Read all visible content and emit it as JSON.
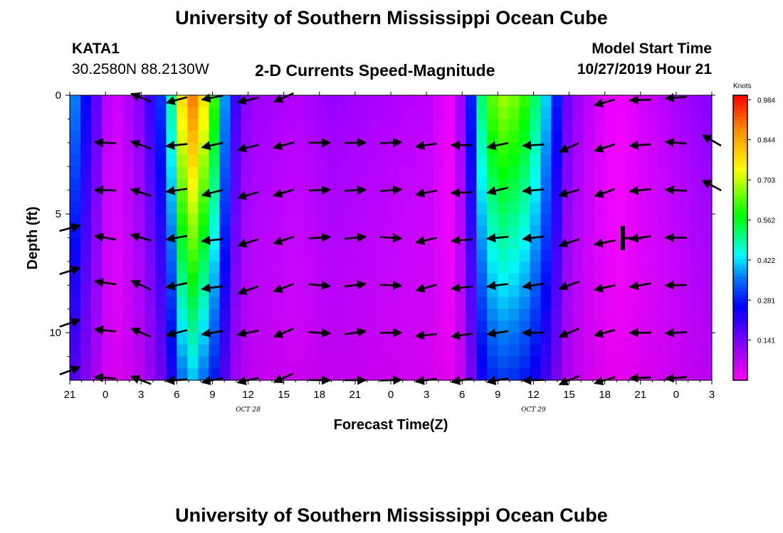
{
  "header": {
    "title_top": "University of Southern Mississippi Ocean Cube",
    "station": "KATA1",
    "coords": "30.2580N 88.2130W",
    "subtitle": "2-D Currents Speed-Magnitude",
    "model_start_label": "Model Start Time",
    "model_start_value": "10/27/2019 Hour 21",
    "title_bottom": "University of Southern Mississippi Ocean Cube"
  },
  "chart_data": {
    "type": "heatmap",
    "title": "2-D Currents Speed-Magnitude",
    "xlabel": "Forecast Time(Z)",
    "ylabel": "Depth (ft)",
    "xlim": [
      0,
      54
    ],
    "ylim": [
      12,
      0
    ],
    "x_tick_labels": [
      "21",
      "0",
      "3",
      "6",
      "9",
      "12",
      "15",
      "18",
      "21",
      "0",
      "3",
      "6",
      "9",
      "12",
      "15",
      "18",
      "21",
      "0",
      "3"
    ],
    "x_sub_labels": [
      {
        "text": "OCT 28",
        "x": 15
      },
      {
        "text": "OCT 29",
        "x": 39
      }
    ],
    "y_ticks": [
      0,
      5,
      10
    ],
    "y_tick_labels": [
      "0",
      "5",
      "10"
    ],
    "colorbar": {
      "unit": "Knots",
      "min": 0,
      "max": 1.0,
      "tick_values": [
        0.141,
        0.281,
        0.422,
        0.562,
        0.703,
        0.844,
        0.984
      ],
      "tick_labels": [
        "0.141",
        "0.281",
        "0.422",
        "0.562",
        "0.703",
        "0.844",
        "0.984"
      ]
    },
    "speed_profile_knots": [
      {
        "x": 0.0,
        "v": 0.38
      },
      {
        "x": 1.5,
        "v": 0.22
      },
      {
        "x": 2.8,
        "v": 0.1
      },
      {
        "x": 3.5,
        "v": 0.03
      },
      {
        "x": 5.0,
        "v": 0.08
      },
      {
        "x": 6.0,
        "v": 0.12
      },
      {
        "x": 7.5,
        "v": 0.25
      },
      {
        "x": 8.4,
        "v": 0.4
      },
      {
        "x": 9.0,
        "v": 0.6
      },
      {
        "x": 10.0,
        "v": 0.85
      },
      {
        "x": 11.0,
        "v": 0.75
      },
      {
        "x": 12.5,
        "v": 0.5
      },
      {
        "x": 13.5,
        "v": 0.22
      },
      {
        "x": 15.0,
        "v": 0.1
      },
      {
        "x": 19.0,
        "v": 0.07
      },
      {
        "x": 22.0,
        "v": 0.1
      },
      {
        "x": 30.5,
        "v": 0.06
      },
      {
        "x": 31.8,
        "v": 0.01
      },
      {
        "x": 32.8,
        "v": 0.08
      },
      {
        "x": 33.5,
        "v": 0.2
      },
      {
        "x": 35.0,
        "v": 0.56
      },
      {
        "x": 36.5,
        "v": 0.62
      },
      {
        "x": 38.0,
        "v": 0.58
      },
      {
        "x": 39.5,
        "v": 0.45
      },
      {
        "x": 40.5,
        "v": 0.32
      },
      {
        "x": 42.0,
        "v": 0.12
      },
      {
        "x": 44.0,
        "v": 0.05
      },
      {
        "x": 46.0,
        "v": 0.01
      },
      {
        "x": 48.0,
        "v": 0.04
      },
      {
        "x": 54.0,
        "v": 0.12
      }
    ],
    "speed_depth_factor": {
      "surface": 1.1,
      "bottom": 0.5
    },
    "vectors": [
      {
        "x": 0.0,
        "d": [
          5.6,
          7.4,
          9.6,
          11.6
        ],
        "angle": 20
      },
      {
        "x": 3.0,
        "d": [
          2.0,
          4.0,
          6.0,
          7.9,
          9.9,
          11.9
        ],
        "angle": 175
      },
      {
        "x": 6.0,
        "d": [
          0.1,
          2.1,
          4.1,
          6.0,
          8.0,
          10.0,
          12.0
        ],
        "angle": 160
      },
      {
        "x": 9.0,
        "d": [
          0.2,
          2.1,
          4.0,
          6.0,
          8.0,
          10.0,
          12.0
        ],
        "angle": 190
      },
      {
        "x": 12.0,
        "d": [
          0.1,
          2.1,
          4.1,
          6.1,
          8.1,
          10.0,
          12.0
        ],
        "angle": 190
      },
      {
        "x": 15.0,
        "d": [
          0.2,
          2.2,
          4.2,
          6.2,
          8.2,
          10.0,
          12.0
        ],
        "angle": 195
      },
      {
        "x": 18.0,
        "d": [
          0.1,
          2.1,
          4.1,
          6.1,
          8.1,
          10.0,
          11.9
        ],
        "angle": 200
      },
      {
        "x": 21.0,
        "d": [
          2.0,
          4.0,
          6.0,
          8.0,
          10.0,
          12.0
        ],
        "angle": 0
      },
      {
        "x": 24.0,
        "d": [
          2.0,
          4.0,
          6.0,
          8.0,
          10.0,
          12.0
        ],
        "angle": 5
      },
      {
        "x": 27.0,
        "d": [
          2.0,
          4.0,
          6.0,
          8.0,
          10.0,
          12.0
        ],
        "angle": 0
      },
      {
        "x": 30.0,
        "d": [
          2.1,
          4.1,
          6.1,
          8.1,
          10.1,
          12.0
        ],
        "angle": 190
      },
      {
        "x": 33.0,
        "d": [
          2.1,
          4.1,
          6.1,
          8.1,
          10.1,
          12.0
        ],
        "angle": 185
      },
      {
        "x": 36.0,
        "d": [
          2.1,
          4.0,
          6.0,
          8.0,
          10.0,
          12.0
        ],
        "angle": 190
      },
      {
        "x": 39.0,
        "d": [
          2.1,
          4.0,
          6.0,
          8.0,
          10.0,
          12.0
        ],
        "angle": 185
      },
      {
        "x": 42.0,
        "d": [
          2.2,
          4.1,
          6.2,
          8.0,
          10.0,
          12.0
        ],
        "angle": 200
      },
      {
        "x": 45.0,
        "d": [
          0.3,
          2.2,
          4.1,
          6.2,
          8.1,
          10.0,
          12.0
        ],
        "angle": 195
      },
      {
        "x": 48.0,
        "d": [
          0.2,
          2.1,
          4.0,
          6.0,
          8.0,
          10.0,
          11.9
        ],
        "angle": 185
      },
      {
        "x": 51.0,
        "d": [
          0.1,
          2.0,
          4.0,
          6.0,
          8.0,
          10.0,
          11.9
        ],
        "angle": 180
      },
      {
        "x": 54.0,
        "d": [
          1.9,
          3.8
        ],
        "angle": 150
      }
    ]
  }
}
